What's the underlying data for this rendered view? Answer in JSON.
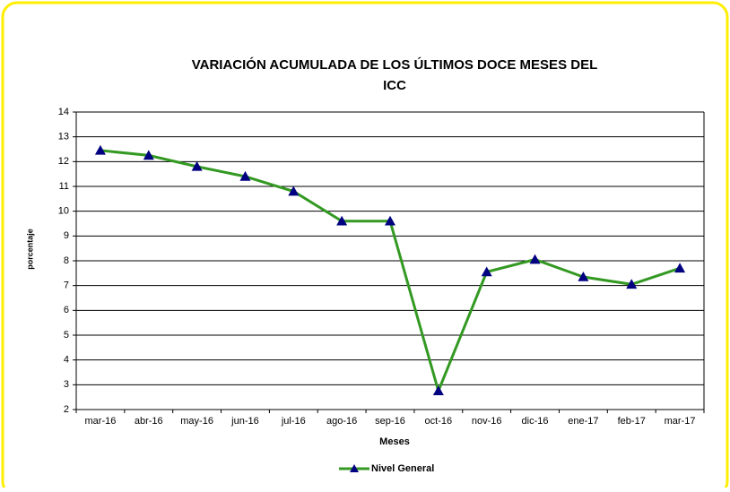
{
  "chart_data": {
    "type": "line",
    "title": "VARIACIÓN ACUMULADA DE LOS ÚLTIMOS DOCE MESES DEL ICC",
    "x_label": "Meses",
    "y_label": "porcentaje",
    "categories": [
      "mar-16",
      "abr-16",
      "may-16",
      "jun-16",
      "jul-16",
      "ago-16",
      "sep-16",
      "oct-16",
      "nov-16",
      "dic-16",
      "ene-17",
      "feb-17",
      "mar-17"
    ],
    "series": [
      {
        "name": "Nivel General",
        "color": "#339922",
        "marker_color": "#000080",
        "values": [
          12.45,
          12.25,
          11.8,
          11.4,
          10.8,
          9.6,
          9.6,
          2.75,
          7.55,
          8.05,
          7.35,
          7.05,
          7.7
        ]
      }
    ],
    "ylim": [
      2,
      14
    ],
    "yticks": [
      2,
      3,
      4,
      5,
      6,
      7,
      8,
      9,
      10,
      11,
      12,
      13,
      14
    ],
    "grid": true,
    "legend": "bottom"
  }
}
